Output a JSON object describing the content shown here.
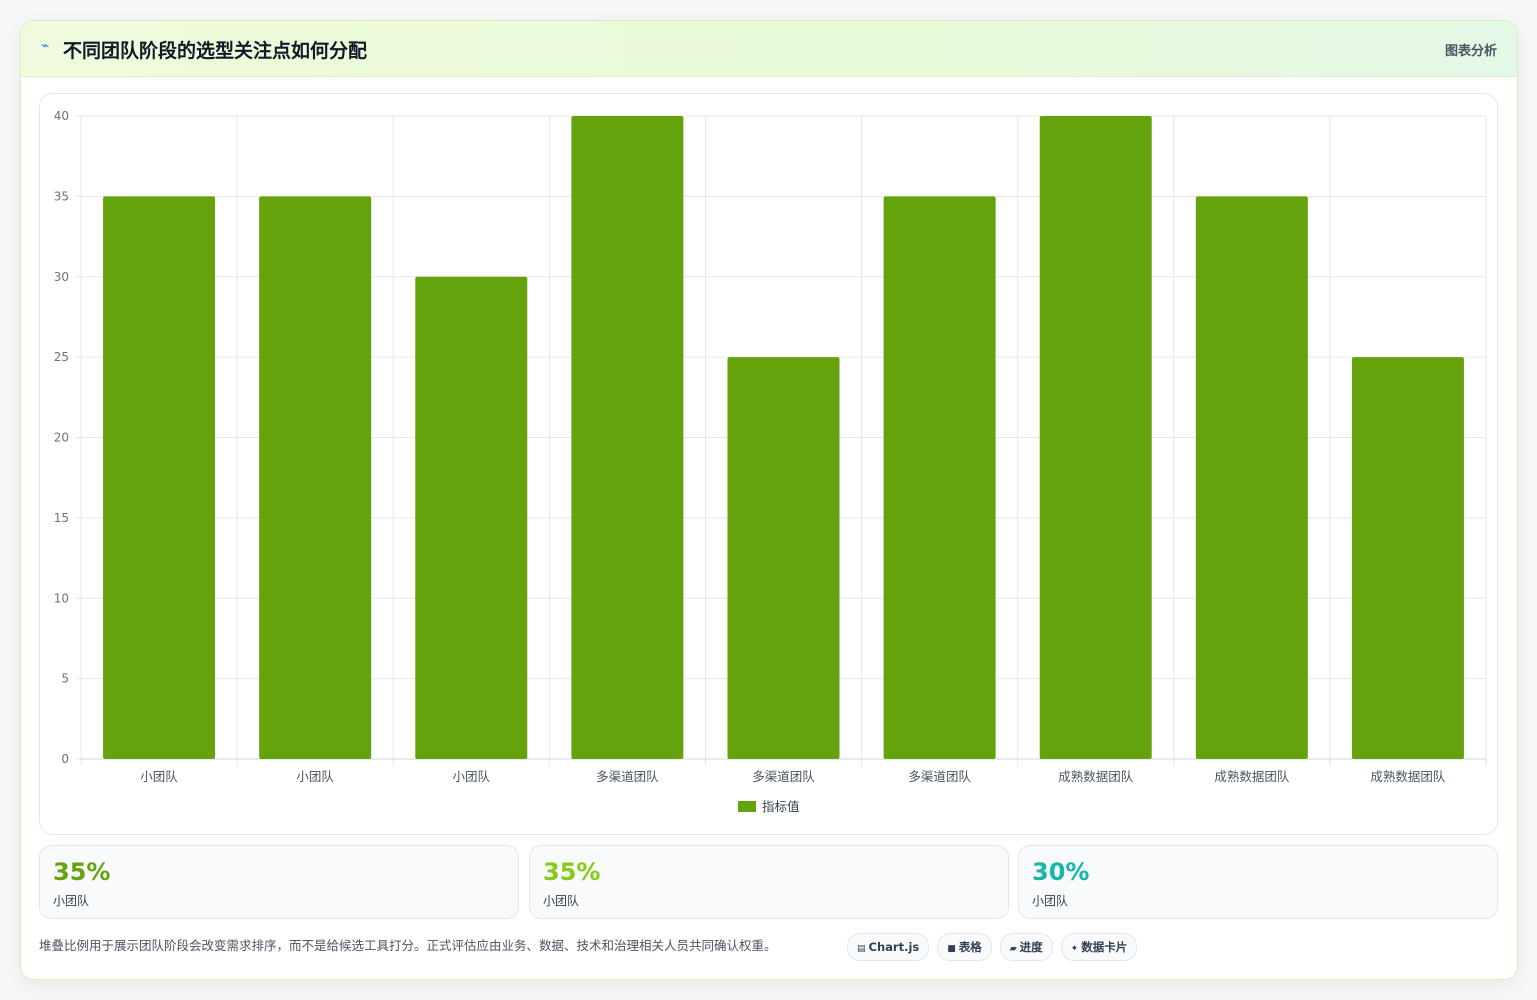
{
  "header": {
    "icon": "chart-line-icon",
    "title": "不同团队阶段的选型关注点如何分配",
    "tag": "图表分析"
  },
  "chart_data": {
    "type": "bar",
    "categories": [
      "小团队",
      "小团队",
      "小团队",
      "多渠道团队",
      "多渠道团队",
      "多渠道团队",
      "成熟数据团队",
      "成熟数据团队",
      "成熟数据团队"
    ],
    "series": [
      {
        "name": "指标值",
        "values": [
          35,
          35,
          30,
          40,
          25,
          35,
          40,
          35,
          25
        ],
        "color": "#65a30d"
      }
    ],
    "ylim": [
      0,
      40
    ],
    "yticks": [
      0,
      5,
      10,
      15,
      20,
      25,
      30,
      35,
      40
    ],
    "grid": true,
    "legend": "bottom"
  },
  "stats": [
    {
      "value": "35%",
      "label": "小团队",
      "color": "#65a30d"
    },
    {
      "value": "35%",
      "label": "小团队",
      "color": "#84cc16"
    },
    {
      "value": "30%",
      "label": "小团队",
      "color": "#14b8a6"
    }
  ],
  "footnote": "堆叠比例用于展示团队阶段会改变需求排序，而不是给候选工具打分。正式评估应由业务、数据、技术和治理相关人员共同确认权重。",
  "badges": [
    {
      "icon": "▤",
      "label": "Chart.js"
    },
    {
      "icon": "■",
      "label": "表格"
    },
    {
      "icon": "▰",
      "label": "进度"
    },
    {
      "icon": "✦",
      "label": "数据卡片"
    }
  ]
}
